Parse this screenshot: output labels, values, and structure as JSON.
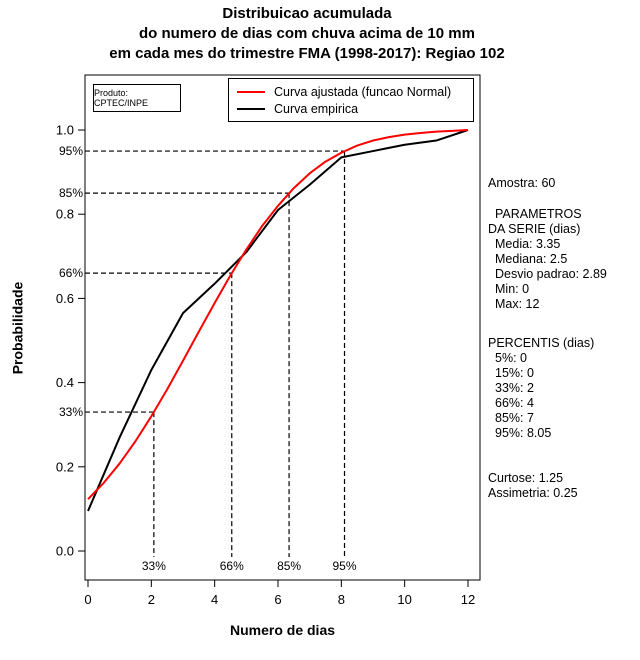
{
  "produto_label": "Produto: CPTEC/INPE",
  "chart_data": {
    "type": "line",
    "title": [
      "Distribuicao acumulada",
      "do numero de dias com chuva acima de 10 mm",
      "em cada mes do trimestre FMA (1998-2017): Regiao 102"
    ],
    "xlabel": "Numero de dias",
    "ylabel": "Probabilidade",
    "xlim": [
      0,
      12
    ],
    "ylim": [
      0.0,
      1.0
    ],
    "x_ticks": [
      0,
      2,
      4,
      6,
      8,
      10,
      12
    ],
    "y_ticks": [
      0,
      0.2,
      0.4,
      0.6,
      0.8,
      1
    ],
    "grid": false,
    "legend_position": "top-inside",
    "series": [
      {
        "name": "Curva ajustada (funcao Normal)",
        "color": "#ff0000",
        "x": [
          0,
          0.5,
          1,
          1.5,
          2,
          2.5,
          3,
          3.5,
          4,
          4.5,
          5,
          5.5,
          6,
          6.5,
          7,
          7.5,
          8,
          8.5,
          9,
          9.5,
          10,
          10.5,
          11,
          11.5,
          12
        ],
        "y": [
          0.123,
          0.162,
          0.208,
          0.261,
          0.32,
          0.384,
          0.452,
          0.521,
          0.589,
          0.655,
          0.716,
          0.772,
          0.82,
          0.862,
          0.897,
          0.925,
          0.946,
          0.963,
          0.975,
          0.983,
          0.989,
          0.993,
          0.996,
          0.998,
          1.0
        ]
      },
      {
        "name": "Curva empirica",
        "color": "#000000",
        "x": [
          0,
          1,
          2,
          3,
          4,
          5,
          6,
          7,
          8,
          9,
          10,
          11,
          12
        ],
        "y": [
          0.095,
          0.27,
          0.43,
          0.565,
          0.635,
          0.71,
          0.81,
          0.87,
          0.935,
          0.95,
          0.965,
          0.975,
          1.0
        ]
      }
    ],
    "percentile_guides": [
      {
        "label": "33%",
        "prob": 0.33,
        "x": 2.08
      },
      {
        "label": "66%",
        "prob": 0.66,
        "x": 4.54
      },
      {
        "label": "85%",
        "prob": 0.85,
        "x": 6.35
      },
      {
        "label": "95%",
        "prob": 0.95,
        "x": 8.1
      }
    ]
  },
  "stats_panel": {
    "groups": [
      [
        {
          "t": "Amostra: 60",
          "ind": 0
        }
      ],
      [
        {
          "t": "PARAMETROS",
          "ind": 1
        },
        {
          "t": "DA SERIE (dias)",
          "ind": 0
        },
        {
          "t": "Media: 3.35",
          "ind": 1
        },
        {
          "t": "Mediana: 2.5",
          "ind": 1
        },
        {
          "t": "Desvio padrao: 2.89",
          "ind": 1
        },
        {
          "t": "Min: 0",
          "ind": 1
        },
        {
          "t": "Max: 12",
          "ind": 1
        }
      ],
      [
        {
          "t": "PERCENTIS (dias)",
          "ind": 0
        },
        {
          "t": "5%: 0",
          "ind": 1
        },
        {
          "t": "15%: 0",
          "ind": 1
        },
        {
          "t": "33%: 2",
          "ind": 1
        },
        {
          "t": "66%: 4",
          "ind": 1
        },
        {
          "t": "85%: 7",
          "ind": 1
        },
        {
          "t": "95%: 8.05",
          "ind": 1
        }
      ],
      [
        {
          "t": "Curtose: 1.25",
          "ind": 0
        },
        {
          "t": "Assimetria: 0.25",
          "ind": 0
        }
      ]
    ]
  }
}
